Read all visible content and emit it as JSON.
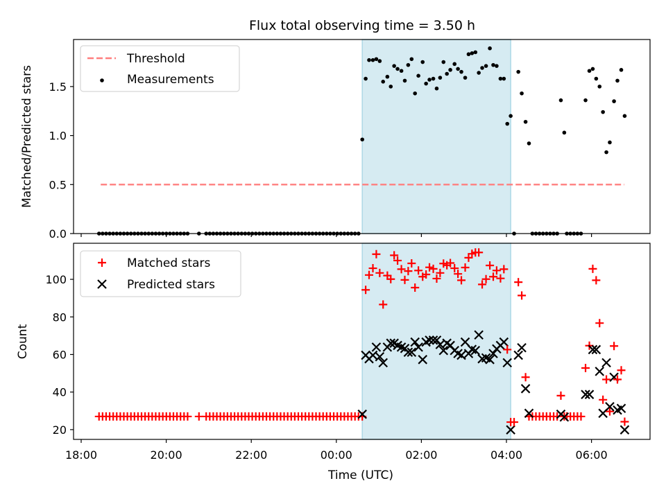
{
  "chart_data": [
    {
      "type": "scatter",
      "title": "Flux total observing time = 3.50 h",
      "xlabel": "",
      "ylabel": "Matched/Predicted stars",
      "x_units": "hours after 18:00 UTC",
      "xlim": [
        -0.77,
        13.38
      ],
      "ylim": [
        0,
        1.98
      ],
      "yticks": [
        0.0,
        0.5,
        1.0,
        1.5
      ],
      "ytick_labels": [
        "0.0",
        "0.5",
        "1.0",
        "1.5"
      ],
      "threshold": {
        "value": 0.5,
        "x_range": [
          0.46,
          12.77
        ],
        "color": "#ff7f7f",
        "label": "Threshold"
      },
      "legend": {
        "placement": "top-left",
        "entries": [
          "Threshold",
          "Measurements"
        ]
      },
      "series_name": "Measurements"
    },
    {
      "type": "scatter",
      "xlabel": "Time (UTC)",
      "ylabel": "Count",
      "xlim": [
        -0.77,
        13.38
      ],
      "ylim": [
        14.8,
        119.2
      ],
      "yticks": [
        20,
        40,
        60,
        80,
        100
      ],
      "ytick_labels": [
        "20",
        "40",
        "60",
        "80",
        "100"
      ],
      "xticks": [
        0,
        2,
        4,
        6,
        8,
        10,
        12
      ],
      "xtick_labels": [
        "18:00",
        "20:00",
        "22:00",
        "00:00",
        "02:00",
        "04:00",
        "06:00"
      ],
      "legend": {
        "placement": "top-left",
        "entries": [
          "Matched stars",
          "Predicted stars"
        ]
      },
      "colors": {
        "matched": "#ff0000",
        "predicted": "#000000"
      }
    }
  ],
  "observing_window": {
    "start": 6.61,
    "end": 10.1,
    "color": "#add8e6"
  },
  "baseline": {
    "step_h": 0.0833,
    "ratio": 0,
    "matched": 27,
    "segments": [
      [
        0.42,
        2.53
      ],
      [
        2.77,
        2.77
      ],
      [
        2.94,
        6.53
      ],
      [
        10.61,
        11.22
      ],
      [
        11.42,
        11.8
      ]
    ]
  },
  "observations_columns": [
    "time_h",
    "ratio",
    "matched",
    "predicted"
  ],
  "observations": [
    [
      6.61,
      0.96,
      27,
      28.2
    ],
    [
      6.69,
      1.58,
      94.4,
      59.6
    ],
    [
      6.77,
      1.77,
      102.3,
      57.7
    ],
    [
      6.86,
      1.77,
      105.9,
      59.6
    ],
    [
      6.94,
      1.78,
      113.4,
      63.9
    ],
    [
      7.02,
      1.76,
      103.4,
      58.8
    ],
    [
      7.1,
      1.55,
      86.6,
      55.6
    ],
    [
      7.2,
      1.6,
      102.0,
      63.9
    ],
    [
      7.28,
      1.5,
      100.1,
      66.0
    ],
    [
      7.36,
      1.71,
      112.8,
      66.0
    ],
    [
      7.44,
      1.68,
      110.0,
      64.8
    ],
    [
      7.53,
      1.66,
      105.4,
      63.9
    ],
    [
      7.61,
      1.56,
      99.7,
      63.2
    ],
    [
      7.69,
      1.72,
      104.4,
      61.2
    ],
    [
      7.77,
      1.78,
      108.5,
      61.2
    ],
    [
      7.85,
      1.43,
      95.6,
      66.6
    ],
    [
      7.93,
      1.61,
      104.7,
      63.9
    ],
    [
      8.03,
      1.75,
      101.4,
      57.3
    ],
    [
      8.11,
      1.53,
      102.6,
      66.6
    ],
    [
      8.19,
      1.57,
      106.4,
      67.6
    ],
    [
      8.28,
      1.58,
      105.6,
      67.6
    ],
    [
      8.36,
      1.48,
      100.4,
      67.6
    ],
    [
      8.44,
      1.59,
      103.4,
      65.3
    ],
    [
      8.52,
      1.75,
      108.4,
      62.1
    ],
    [
      8.6,
      1.63,
      107.5,
      66.0
    ],
    [
      8.68,
      1.67,
      108.7,
      64.8
    ],
    [
      8.78,
      1.73,
      105.9,
      62.1
    ],
    [
      8.86,
      1.68,
      102.9,
      60.5
    ],
    [
      8.94,
      1.65,
      99.5,
      59.6
    ],
    [
      9.03,
      1.59,
      106.3,
      66.6
    ],
    [
      9.11,
      1.83,
      111.5,
      60.5
    ],
    [
      9.19,
      1.84,
      113.6,
      62.7
    ],
    [
      9.27,
      1.85,
      114.3,
      62.1
    ],
    [
      9.35,
      1.64,
      114.3,
      70.4
    ],
    [
      9.43,
      1.69,
      97.3,
      57.7
    ],
    [
      9.52,
      1.71,
      100.1,
      58.2
    ],
    [
      9.61,
      1.89,
      107.4,
      57.3
    ],
    [
      9.69,
      1.72,
      101.4,
      60.5
    ],
    [
      9.77,
      1.71,
      104.7,
      63.0
    ],
    [
      9.86,
      1.58,
      100.5,
      64.8
    ],
    [
      9.94,
      1.58,
      105.4,
      66.6
    ],
    [
      10.02,
      1.12,
      62.6,
      55.6
    ],
    [
      10.1,
      1.2,
      24.0,
      19.9
    ],
    [
      10.18,
      0,
      24.0,
      null
    ],
    [
      10.28,
      1.65,
      98.5,
      59.6
    ],
    [
      10.36,
      1.43,
      91.4,
      63.6
    ],
    [
      10.45,
      1.14,
      47.9,
      41.8
    ],
    [
      10.53,
      0.92,
      27,
      28.7
    ],
    [
      11.28,
      1.36,
      38.1,
      28.2
    ],
    [
      11.36,
      1.03,
      27,
      26.7
    ],
    [
      11.86,
      1.36,
      52.8,
      38.7
    ],
    [
      11.95,
      1.66,
      64.7,
      38.7
    ],
    [
      12.03,
      1.68,
      105.6,
      62.6
    ],
    [
      12.11,
      1.58,
      99.5,
      62.6
    ],
    [
      12.19,
      1.5,
      76.7,
      51.0
    ],
    [
      12.27,
      1.24,
      35.9,
      28.7
    ],
    [
      12.35,
      0.83,
      46.7,
      55.6
    ],
    [
      12.43,
      0.93,
      29.7,
      32.2
    ],
    [
      12.53,
      1.35,
      64.5,
      47.9
    ],
    [
      12.61,
      1.56,
      46.7,
      30.4
    ],
    [
      12.7,
      1.67,
      51.6,
      31.3
    ],
    [
      12.78,
      1.2,
      24.2,
      19.9
    ]
  ]
}
